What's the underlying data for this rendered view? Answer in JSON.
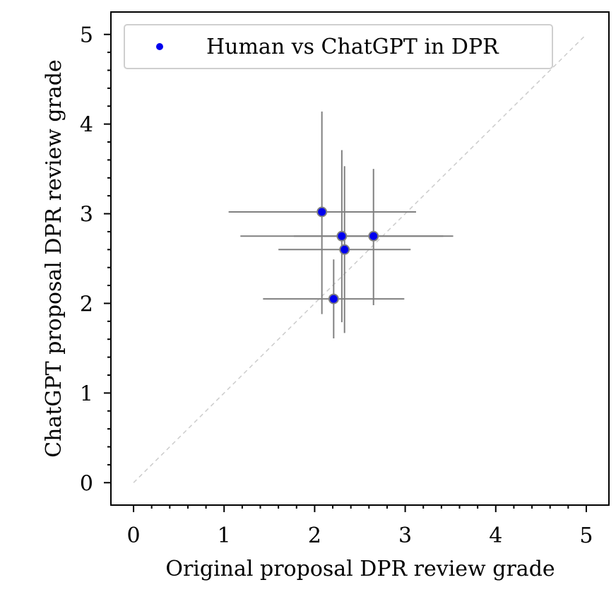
{
  "chart_data": {
    "type": "scatter",
    "title": "",
    "xlabel": "Original proposal DPR review grade",
    "ylabel": "ChatGPT proposal DPR review grade",
    "xlim": [
      -0.25,
      5.25
    ],
    "ylim": [
      -0.25,
      5.25
    ],
    "xticks": [
      "0",
      "1",
      "2",
      "3",
      "4",
      "5"
    ],
    "yticks": [
      "0",
      "1",
      "2",
      "3",
      "4",
      "5"
    ],
    "grid": false,
    "legend": {
      "position": "top-left",
      "entries": [
        "Human vs ChatGPT in DPR"
      ]
    },
    "reference_line": {
      "style": "dashed",
      "color": "#cccccc",
      "from": [
        0,
        0
      ],
      "to": [
        5,
        5
      ]
    },
    "colors": {
      "marker_fill": "#0000ee",
      "marker_edge": "#808080",
      "errorbar": "#808080"
    },
    "series": [
      {
        "name": "Human vs ChatGPT in DPR",
        "points": [
          {
            "x": 2.08,
            "y": 3.02,
            "xerr": [
              1.03,
              1.04
            ],
            "yerr": [
              1.14,
              1.12
            ]
          },
          {
            "x": 2.3,
            "y": 2.75,
            "xerr": [
              1.12,
              1.12
            ],
            "yerr": [
              0.96,
              0.96
            ]
          },
          {
            "x": 2.65,
            "y": 2.75,
            "xerr": [
              0.88,
              0.88
            ],
            "yerr": [
              0.77,
              0.75
            ]
          },
          {
            "x": 2.33,
            "y": 2.6,
            "xerr": [
              0.73,
              0.73
            ],
            "yerr": [
              0.93,
              0.93
            ]
          },
          {
            "x": 2.21,
            "y": 2.05,
            "xerr": [
              0.78,
              0.78
            ],
            "yerr": [
              0.44,
              0.44
            ]
          }
        ]
      }
    ]
  }
}
